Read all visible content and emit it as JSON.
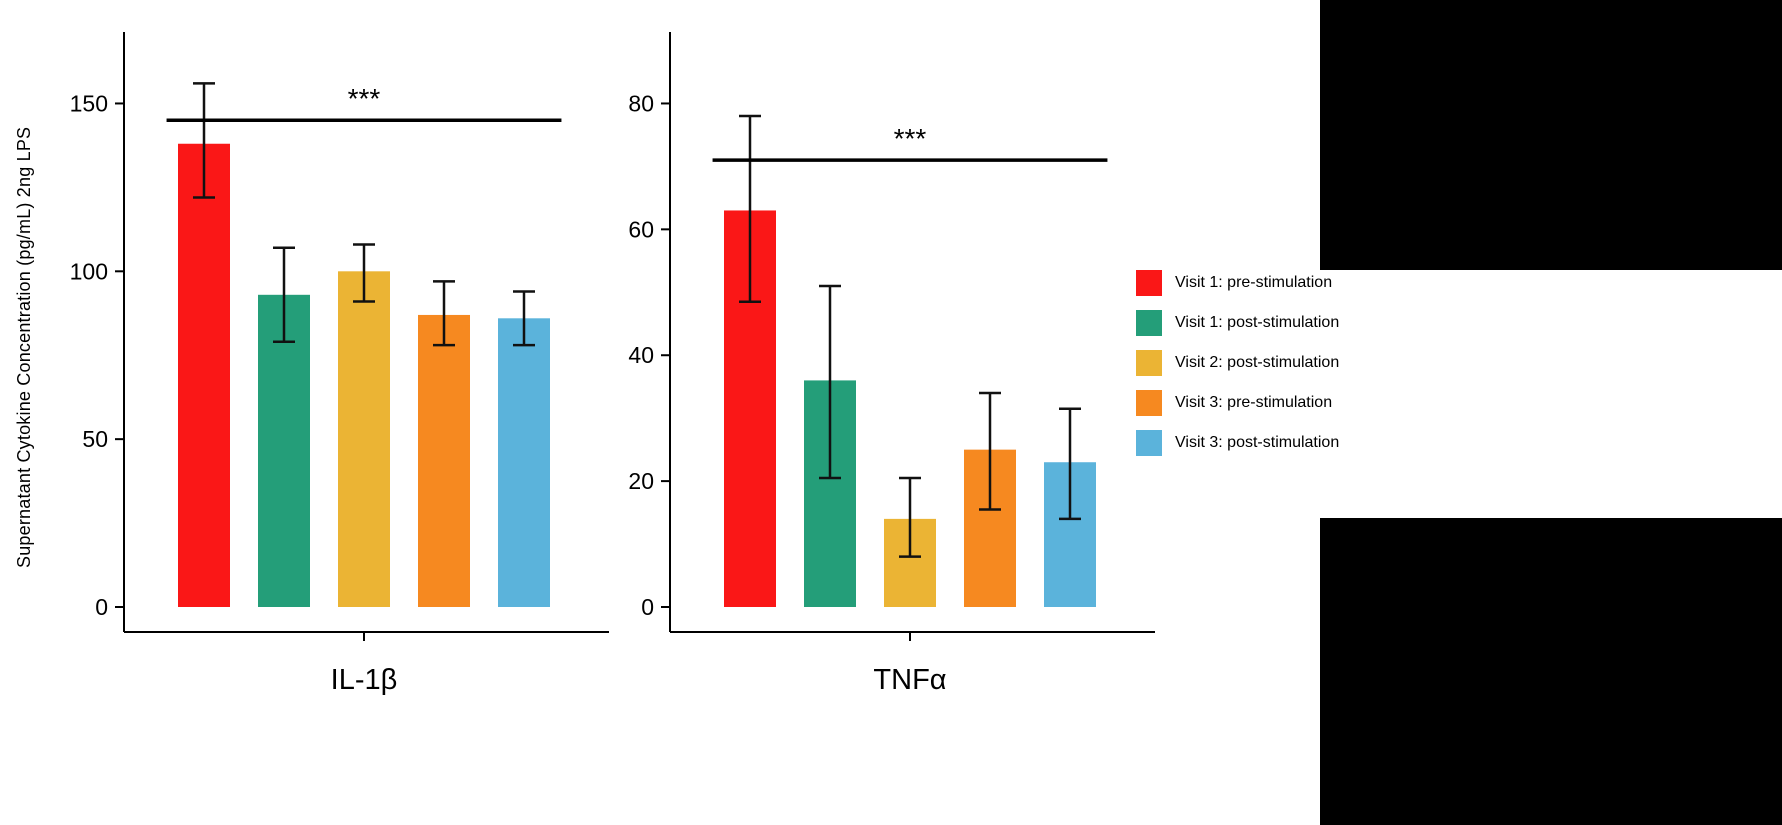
{
  "chart_data": {
    "type": "bar",
    "title": "",
    "ylabel": "Supernatant Cytokine Concentration (pg/mL) 2ng LPS",
    "legend_position": "right",
    "grid": false,
    "error_bars": true,
    "series": [
      {
        "label": "Visit 1: pre-stimulation",
        "color": "#FA1717"
      },
      {
        "label": "Visit 1: post-stimulation",
        "color": "#249E79"
      },
      {
        "label": "Visit 2: post-stimulation",
        "color": "#EBB434"
      },
      {
        "label": "Visit 3: pre-stimulation",
        "color": "#F68920"
      },
      {
        "label": "Visit 3: post-stimulation",
        "color": "#5BB3DB"
      }
    ],
    "panels": [
      {
        "xlabel": "IL-1β",
        "ylim": [
          0,
          150
        ],
        "yticks": [
          0,
          50,
          100,
          150
        ],
        "values": [
          138,
          93,
          100,
          87,
          86
        ],
        "error_low": [
          122,
          79,
          91,
          78,
          78
        ],
        "error_high": [
          156,
          107,
          108,
          97,
          94
        ],
        "significance": {
          "label": "***",
          "y": 145,
          "from_bar": 0,
          "to_bar": 4
        }
      },
      {
        "xlabel": "TNFα",
        "ylim": [
          0,
          80
        ],
        "yticks": [
          0,
          20,
          40,
          60,
          80
        ],
        "values": [
          63,
          36,
          14,
          25,
          23
        ],
        "error_low": [
          48.5,
          20.5,
          8,
          15.5,
          14
        ],
        "error_high": [
          78,
          51,
          20.5,
          34,
          31.5
        ],
        "significance": {
          "label": "***",
          "y": 71,
          "from_bar": 0,
          "to_bar": 4
        }
      }
    ]
  }
}
